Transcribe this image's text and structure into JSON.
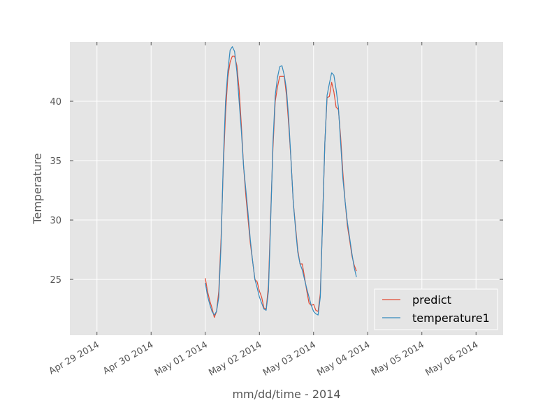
{
  "chart_data": {
    "type": "line",
    "title": "",
    "xlabel": "mm/dd/time - 2014",
    "ylabel": "Temperature",
    "x_type": "datetime",
    "xlim": [
      "2014-04-28T12:00",
      "2014-05-06T12:00"
    ],
    "ylim": [
      20.3,
      45.0
    ],
    "x_ticks": [
      {
        "value": "2014-04-29T00:00",
        "label": "Apr 29 2014"
      },
      {
        "value": "2014-04-30T00:00",
        "label": "Apr 30 2014"
      },
      {
        "value": "2014-05-01T00:00",
        "label": "May 01 2014"
      },
      {
        "value": "2014-05-02T00:00",
        "label": "May 02 2014"
      },
      {
        "value": "2014-05-03T00:00",
        "label": "May 03 2014"
      },
      {
        "value": "2014-05-04T00:00",
        "label": "May 04 2014"
      },
      {
        "value": "2014-05-05T00:00",
        "label": "May 05 2014"
      },
      {
        "value": "2014-05-06T00:00",
        "label": "May 06 2014"
      }
    ],
    "y_ticks": [
      {
        "value": 25,
        "label": "25"
      },
      {
        "value": 30,
        "label": "30"
      },
      {
        "value": 35,
        "label": "35"
      },
      {
        "value": 40,
        "label": "40"
      }
    ],
    "grid": true,
    "legend_position": "lower-right",
    "series": [
      {
        "name": "predict",
        "color": "#e24a33",
        "points": [
          [
            "2014-05-01T00:00",
            25.1
          ],
          [
            "2014-05-01T01:00",
            24.0
          ],
          [
            "2014-05-01T02:00",
            23.2
          ],
          [
            "2014-05-01T03:00",
            22.6
          ],
          [
            "2014-05-01T04:00",
            21.8
          ],
          [
            "2014-05-01T05:00",
            22.3
          ],
          [
            "2014-05-01T06:00",
            24.0
          ],
          [
            "2014-05-01T07:00",
            28.5
          ],
          [
            "2014-05-01T08:00",
            34.5
          ],
          [
            "2014-05-01T09:00",
            39.0
          ],
          [
            "2014-05-01T10:00",
            42.0
          ],
          [
            "2014-05-01T11:00",
            43.3
          ],
          [
            "2014-05-01T12:00",
            43.8
          ],
          [
            "2014-05-01T13:00",
            43.8
          ],
          [
            "2014-05-01T14:00",
            43.0
          ],
          [
            "2014-05-01T15:00",
            41.0
          ],
          [
            "2014-05-01T16:00",
            38.0
          ],
          [
            "2014-05-01T17:00",
            34.5
          ],
          [
            "2014-05-01T18:00",
            32.0
          ],
          [
            "2014-05-01T19:00",
            30.0
          ],
          [
            "2014-05-01T20:00",
            28.0
          ],
          [
            "2014-05-01T21:00",
            26.5
          ],
          [
            "2014-05-01T22:00",
            25.0
          ],
          [
            "2014-05-01T23:00",
            24.8
          ],
          [
            "2014-05-02T00:00",
            24.0
          ],
          [
            "2014-05-02T01:00",
            23.5
          ],
          [
            "2014-05-02T02:00",
            22.6
          ],
          [
            "2014-05-02T03:00",
            22.5
          ],
          [
            "2014-05-02T04:00",
            24.5
          ],
          [
            "2014-05-02T05:00",
            30.5
          ],
          [
            "2014-05-02T06:00",
            36.0
          ],
          [
            "2014-05-02T07:00",
            40.0
          ],
          [
            "2014-05-02T08:00",
            41.2
          ],
          [
            "2014-05-02T09:00",
            42.1
          ],
          [
            "2014-05-02T10:00",
            42.1
          ],
          [
            "2014-05-02T11:00",
            42.1
          ],
          [
            "2014-05-02T12:00",
            40.5
          ],
          [
            "2014-05-02T13:00",
            38.0
          ],
          [
            "2014-05-02T14:00",
            35.0
          ],
          [
            "2014-05-02T15:00",
            31.5
          ],
          [
            "2014-05-02T16:00",
            29.5
          ],
          [
            "2014-05-02T17:00",
            27.5
          ],
          [
            "2014-05-02T18:00",
            26.3
          ],
          [
            "2014-05-02T19:00",
            26.3
          ],
          [
            "2014-05-02T20:00",
            25.2
          ],
          [
            "2014-05-02T21:00",
            24.0
          ],
          [
            "2014-05-02T22:00",
            23.0
          ],
          [
            "2014-05-02T23:00",
            22.8
          ],
          [
            "2014-05-03T00:00",
            22.9
          ],
          [
            "2014-05-03T01:00",
            22.4
          ],
          [
            "2014-05-03T02:00",
            22.3
          ],
          [
            "2014-05-03T03:00",
            23.8
          ],
          [
            "2014-05-03T04:00",
            30.0
          ],
          [
            "2014-05-03T05:00",
            36.5
          ],
          [
            "2014-05-03T06:00",
            40.3
          ],
          [
            "2014-05-03T07:00",
            40.4
          ],
          [
            "2014-05-03T08:00",
            41.6
          ],
          [
            "2014-05-03T09:00",
            40.8
          ],
          [
            "2014-05-03T10:00",
            39.5
          ],
          [
            "2014-05-03T11:00",
            39.3
          ],
          [
            "2014-05-03T12:00",
            37.0
          ],
          [
            "2014-05-03T13:00",
            34.0
          ],
          [
            "2014-05-03T14:00",
            31.5
          ],
          [
            "2014-05-03T15:00",
            29.5
          ],
          [
            "2014-05-03T16:00",
            28.3
          ],
          [
            "2014-05-03T17:00",
            27.0
          ],
          [
            "2014-05-03T18:00",
            26.2
          ],
          [
            "2014-05-03T19:00",
            25.7
          ]
        ]
      },
      {
        "name": "temperature1",
        "color": "#348abd",
        "points": [
          [
            "2014-05-01T00:00",
            24.7
          ],
          [
            "2014-05-01T01:00",
            23.6
          ],
          [
            "2014-05-01T02:00",
            22.9
          ],
          [
            "2014-05-01T03:00",
            22.3
          ],
          [
            "2014-05-01T04:00",
            22.0
          ],
          [
            "2014-05-01T05:00",
            22.3
          ],
          [
            "2014-05-01T06:00",
            23.5
          ],
          [
            "2014-05-01T07:00",
            28.0
          ],
          [
            "2014-05-01T08:00",
            35.0
          ],
          [
            "2014-05-01T09:00",
            40.0
          ],
          [
            "2014-05-01T10:00",
            42.5
          ],
          [
            "2014-05-01T11:00",
            44.3
          ],
          [
            "2014-05-01T12:00",
            44.6
          ],
          [
            "2014-05-01T13:00",
            44.2
          ],
          [
            "2014-05-01T14:00",
            42.5
          ],
          [
            "2014-05-01T15:00",
            40.0
          ],
          [
            "2014-05-01T16:00",
            37.5
          ],
          [
            "2014-05-01T17:00",
            34.5
          ],
          [
            "2014-05-01T18:00",
            32.5
          ],
          [
            "2014-05-01T19:00",
            30.5
          ],
          [
            "2014-05-01T20:00",
            28.3
          ],
          [
            "2014-05-01T21:00",
            26.5
          ],
          [
            "2014-05-01T22:00",
            25.0
          ],
          [
            "2014-05-01T23:00",
            24.3
          ],
          [
            "2014-05-02T00:00",
            23.5
          ],
          [
            "2014-05-02T01:00",
            23.0
          ],
          [
            "2014-05-02T02:00",
            22.5
          ],
          [
            "2014-05-02T03:00",
            22.4
          ],
          [
            "2014-05-02T04:00",
            24.0
          ],
          [
            "2014-05-02T05:00",
            30.0
          ],
          [
            "2014-05-02T06:00",
            36.5
          ],
          [
            "2014-05-02T07:00",
            40.5
          ],
          [
            "2014-05-02T08:00",
            42.0
          ],
          [
            "2014-05-02T09:00",
            42.9
          ],
          [
            "2014-05-02T10:00",
            43.0
          ],
          [
            "2014-05-02T11:00",
            42.2
          ],
          [
            "2014-05-02T12:00",
            41.0
          ],
          [
            "2014-05-02T13:00",
            38.5
          ],
          [
            "2014-05-02T14:00",
            35.0
          ],
          [
            "2014-05-02T15:00",
            31.5
          ],
          [
            "2014-05-02T16:00",
            29.3
          ],
          [
            "2014-05-02T17:00",
            27.3
          ],
          [
            "2014-05-02T18:00",
            26.3
          ],
          [
            "2014-05-02T19:00",
            25.8
          ],
          [
            "2014-05-02T20:00",
            25.0
          ],
          [
            "2014-05-02T21:00",
            24.2
          ],
          [
            "2014-05-02T22:00",
            23.5
          ],
          [
            "2014-05-02T23:00",
            22.8
          ],
          [
            "2014-05-03T00:00",
            22.3
          ],
          [
            "2014-05-03T01:00",
            22.1
          ],
          [
            "2014-05-03T02:00",
            22.0
          ],
          [
            "2014-05-03T03:00",
            23.5
          ],
          [
            "2014-05-03T04:00",
            30.0
          ],
          [
            "2014-05-03T05:00",
            36.5
          ],
          [
            "2014-05-03T06:00",
            40.5
          ],
          [
            "2014-05-03T07:00",
            41.5
          ],
          [
            "2014-05-03T08:00",
            42.4
          ],
          [
            "2014-05-03T09:00",
            42.2
          ],
          [
            "2014-05-03T10:00",
            41.0
          ],
          [
            "2014-05-03T11:00",
            39.5
          ],
          [
            "2014-05-03T12:00",
            36.5
          ],
          [
            "2014-05-03T13:00",
            33.5
          ],
          [
            "2014-05-03T14:00",
            31.5
          ],
          [
            "2014-05-03T15:00",
            29.8
          ],
          [
            "2014-05-03T16:00",
            28.5
          ],
          [
            "2014-05-03T17:00",
            27.2
          ],
          [
            "2014-05-03T18:00",
            26.0
          ],
          [
            "2014-05-03T19:00",
            25.2
          ]
        ]
      }
    ]
  }
}
